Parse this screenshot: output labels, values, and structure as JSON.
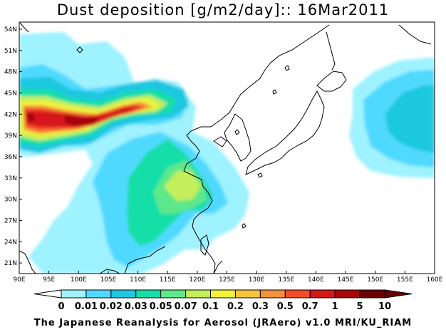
{
  "title": "Dust deposition [g/m2/day]:: 16Mar2011",
  "footer": "The Japanese Reanalysis for Aerosol (JRAero) v1.0 MRI/KU_RIAM",
  "map": {
    "lon_range": [
      90,
      160
    ],
    "lat_range": [
      19.5,
      55
    ],
    "lon_ticks": [
      "90E",
      "95E",
      "100E",
      "105E",
      "110E",
      "115E",
      "120E",
      "125E",
      "130E",
      "135E",
      "140E",
      "145E",
      "150E",
      "155E",
      "160E"
    ],
    "lat_ticks": [
      "21N",
      "24N",
      "27N",
      "30N",
      "33N",
      "36N",
      "39N",
      "42N",
      "45N",
      "48N",
      "51N",
      "54N"
    ]
  },
  "colorbar": {
    "labels": [
      "0",
      "0.01",
      "0.02",
      "0.03",
      "0.05",
      "0.07",
      "0.1",
      "0.2",
      "0.3",
      "0.5",
      "0.7",
      "1",
      "5",
      "10"
    ],
    "colors": [
      "#ffffff",
      "#9ff2ff",
      "#4fd9ff",
      "#1ec7e0",
      "#16dea8",
      "#5ee88a",
      "#c4ef5a",
      "#f2f23e",
      "#f4c53a",
      "#f4903a",
      "#f24c2b",
      "#d6181a",
      "#a8050c",
      "#6a0000"
    ]
  }
}
